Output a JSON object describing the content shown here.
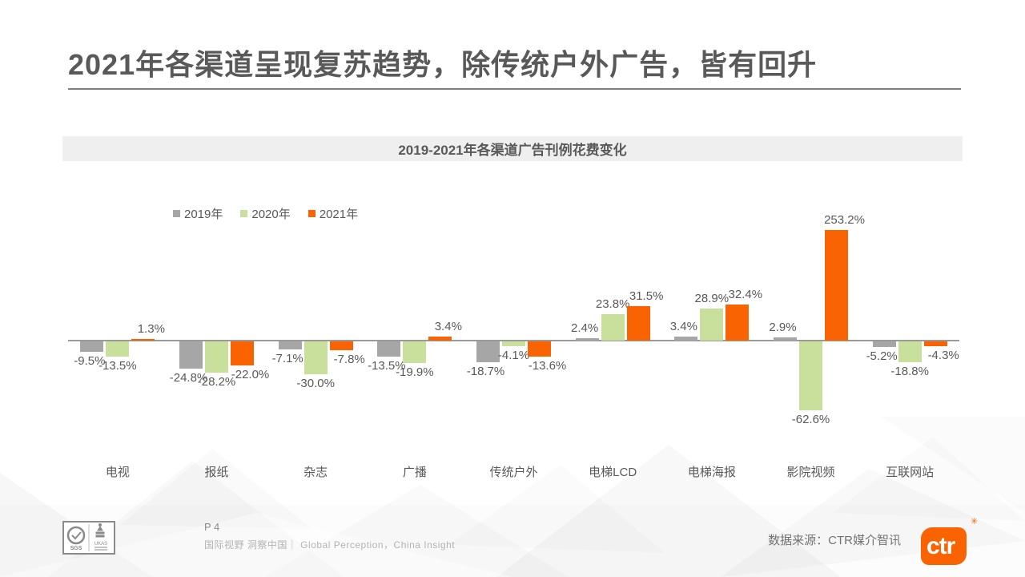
{
  "slide": {
    "title": "2021年各渠道呈现复苏趋势，除传统户外广告，皆有回升",
    "page_number": "P 4",
    "footer_tagline": "国际视野 洞察中国｜ Global Perception，China Insight",
    "data_source": "数据来源：CTR媒介智讯",
    "logo_text": "ctr",
    "registered_mark": "✳"
  },
  "colors": {
    "accent_orange": "#F96302",
    "series_gray": "#A6A6A6",
    "series_green": "#C9DF9C",
    "title_text": "#595959",
    "axis_line": "#9A9A9A",
    "chart_title_bg": "#EFEFEF"
  },
  "chart_data": {
    "type": "bar",
    "title": "2019-2021年各渠道广告刊例花费变化",
    "categories": [
      "电视",
      "报纸",
      "杂志",
      "广播",
      "传统户外",
      "电梯LCD",
      "电梯海报",
      "影院视频",
      "互联网站"
    ],
    "series": [
      {
        "name": "2019年",
        "color": "#A6A6A6",
        "values": [
          -9.5,
          -24.8,
          -7.1,
          -13.5,
          -18.7,
          2.4,
          3.4,
          2.9,
          -5.2
        ],
        "labels": [
          "-9.5%",
          "-24.8%",
          "-7.1%",
          "-13.5%",
          "-18.7%",
          "2.4%",
          "3.4%",
          "2.9%",
          "-5.2%"
        ]
      },
      {
        "name": "2020年",
        "color": "#C9DF9C",
        "values": [
          -13.5,
          -28.2,
          -30.0,
          -19.9,
          -4.1,
          23.8,
          28.9,
          -62.6,
          -18.8
        ],
        "labels": [
          "-13.5%",
          "-28.2%",
          "-30.0%",
          "-19.9%",
          "-4.1%",
          "23.8%",
          "28.9%",
          "-62.6%",
          "-18.8%"
        ]
      },
      {
        "name": "2021年",
        "color": "#F96302",
        "values": [
          1.3,
          -22.0,
          -7.8,
          3.4,
          -13.6,
          31.5,
          32.4,
          253.2,
          -4.3
        ],
        "labels": [
          "1.3%",
          "-22.0%",
          "-7.8%",
          "3.4%",
          "-13.6%",
          "31.5%",
          "32.4%",
          "253.2%",
          "-4.3%"
        ]
      }
    ],
    "xlabel": "",
    "ylabel": "",
    "ylim": [
      -100,
      100
    ],
    "clip_overflow": true,
    "grid": false,
    "legend_position": "top-left"
  }
}
